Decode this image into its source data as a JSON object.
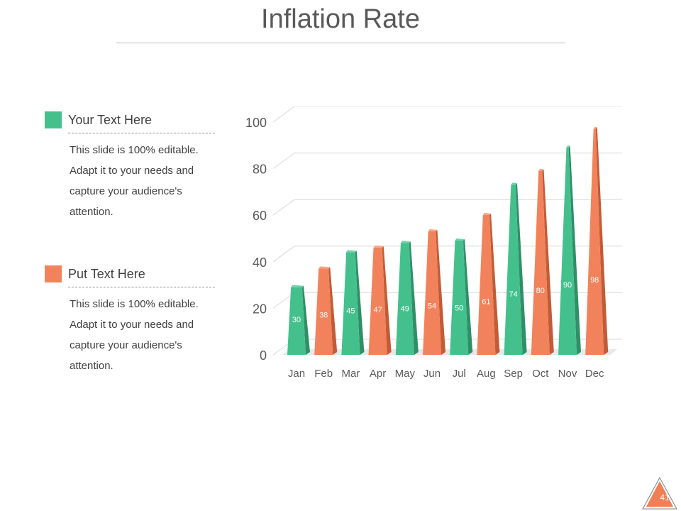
{
  "slide": {
    "title": "Inflation Rate",
    "page_number": "41"
  },
  "legend": [
    {
      "heading": "Your Text Here",
      "color": "#44c08d",
      "body": "This slide is 100% editable. Adapt it to your needs and capture your audience's attention."
    },
    {
      "heading": "Put Text Here",
      "color": "#f2825b",
      "body": "This slide is 100% editable. Adapt it to your needs and capture your audience's attention."
    }
  ],
  "colors": {
    "green": "#44c08d",
    "orange": "#f2825b",
    "badge": "#f07f55"
  },
  "chart_data": {
    "type": "bar",
    "categories": [
      "Jan",
      "Feb",
      "Mar",
      "Apr",
      "May",
      "Jun",
      "Jul",
      "Aug",
      "Sep",
      "Oct",
      "Nov",
      "Dec"
    ],
    "values": [
      30,
      38,
      45,
      47,
      49,
      54,
      50,
      61,
      74,
      80,
      90,
      98
    ],
    "series_index": [
      0,
      1,
      0,
      1,
      0,
      1,
      0,
      1,
      0,
      1,
      0,
      1
    ],
    "yticks": [
      0,
      20,
      40,
      60,
      80,
      100
    ],
    "ylim": [
      0,
      100
    ],
    "grid": true,
    "data_labels": true,
    "bar_style": "3d-cone"
  }
}
